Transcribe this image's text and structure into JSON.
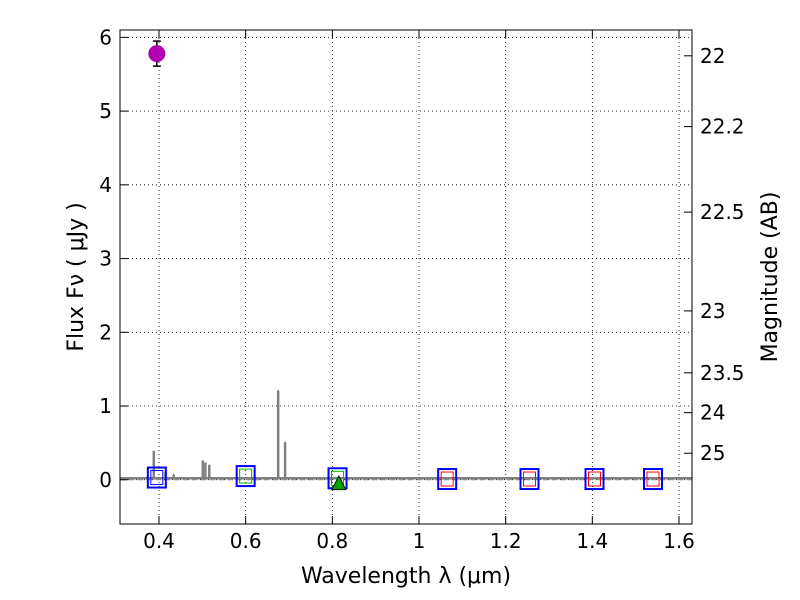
{
  "chart_data": {
    "type": "scatter",
    "xlabel": "Wavelength  λ (μm)",
    "ylabel": "Flux  Fν  ( μJy )",
    "ylabel_right": "Magnitude (AB)",
    "xlim": [
      0.31,
      1.63
    ],
    "ylim": [
      -0.6,
      6.1
    ],
    "grid": true,
    "x_ticks": [
      0.4,
      0.6,
      0.8,
      1.0,
      1.2,
      1.4,
      1.6
    ],
    "x_tick_labels": [
      "0.4",
      "0.6",
      "0.8",
      "1",
      "1.2",
      "1.4",
      "1.6"
    ],
    "y_ticks": [
      0,
      1,
      2,
      3,
      4,
      5,
      6
    ],
    "y_tick_labels": [
      "0",
      "1",
      "2",
      "3",
      "4",
      "5",
      "6"
    ],
    "magnitude_ticks": [
      {
        "label": "22",
        "flux": 5.75
      },
      {
        "label": "22.2",
        "flux": 4.79
      },
      {
        "label": "22.5",
        "flux": 3.63
      },
      {
        "label": "23",
        "flux": 2.29
      },
      {
        "label": "23.5",
        "flux": 1.45
      },
      {
        "label": "24",
        "flux": 0.91
      },
      {
        "label": "25",
        "flux": 0.36
      }
    ],
    "measurement": {
      "x": 0.395,
      "y": 5.78,
      "yerr": 0.17,
      "color": "#b000b0"
    },
    "upper_limit": {
      "x": 0.815,
      "y": -0.04,
      "color": "#00a000"
    },
    "filter_boxes": [
      {
        "x": 0.395,
        "y": 0.03,
        "inner_color": "#0000ff"
      },
      {
        "x": 0.6,
        "y": 0.05,
        "inner_color": "#00b000"
      },
      {
        "x": 0.812,
        "y": 0.02,
        "inner_color": "#00b000"
      },
      {
        "x": 1.065,
        "y": 0.01,
        "inner_color": "#ff0000"
      },
      {
        "x": 1.255,
        "y": 0.01,
        "inner_color": "#ff0000"
      },
      {
        "x": 1.405,
        "y": 0.01,
        "inner_color": "#ff0000"
      },
      {
        "x": 1.54,
        "y": 0.01,
        "inner_color": "#ff0000"
      }
    ],
    "model_spectrum": {
      "color": "#808080",
      "baseline": 0.02,
      "lines": [
        {
          "x": 0.388,
          "height": 0.38
        },
        {
          "x": 0.415,
          "height": 0.1
        },
        {
          "x": 0.434,
          "height": 0.06
        },
        {
          "x": 0.501,
          "height": 0.25
        },
        {
          "x": 0.507,
          "height": 0.22
        },
        {
          "x": 0.516,
          "height": 0.19
        },
        {
          "x": 0.675,
          "height": 1.2
        },
        {
          "x": 0.691,
          "height": 0.5
        }
      ]
    },
    "reference_line": {
      "y": 0.0,
      "color": "#999999"
    },
    "colors": {
      "frame": "#000000",
      "box_edge": "#0000ff",
      "grid": "#000000"
    }
  }
}
